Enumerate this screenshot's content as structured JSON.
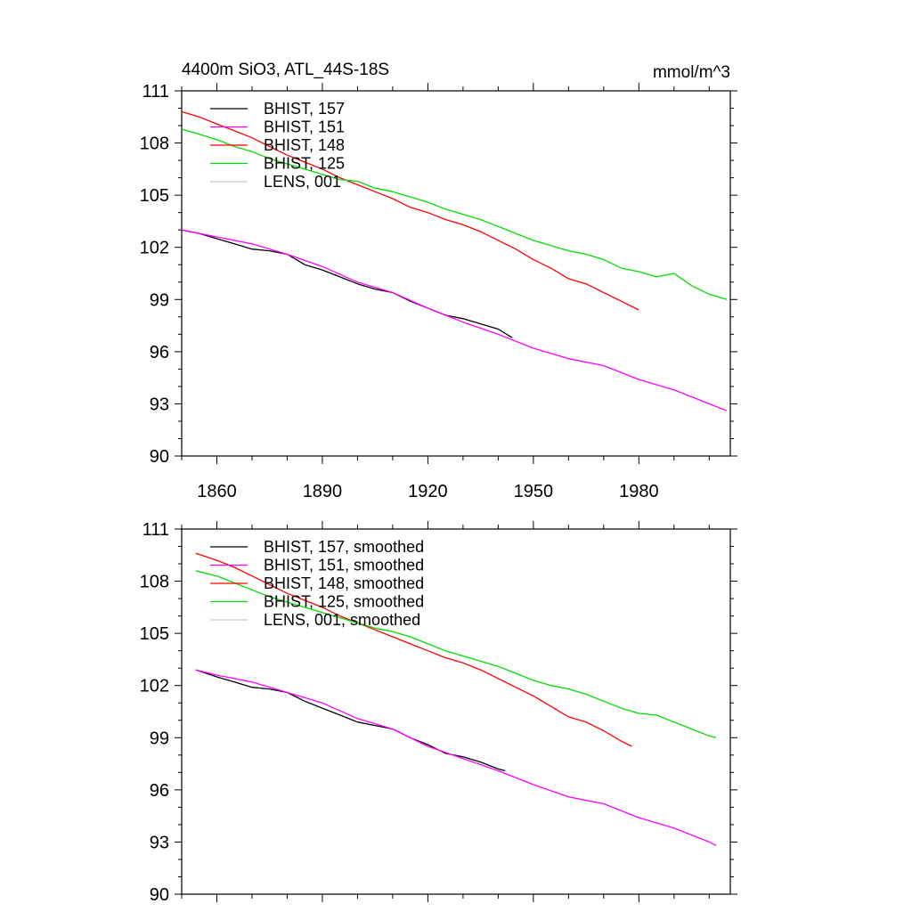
{
  "figure": {
    "title_left": "4400m SiO3, ATL_44S-18S",
    "title_right": "mmol/m^3"
  },
  "colors": {
    "BHIST_157": "#000000",
    "BHIST_151": "#ff00ff",
    "BHIST_148": "#ff0000",
    "BHIST_125": "#00dd00",
    "LENS_001": "#c8c8c8"
  },
  "chart_data": [
    {
      "type": "line",
      "title": "4400m SiO3, ATL_44S-18S",
      "units": "mmol/m^3",
      "xlim": [
        1850,
        2006
      ],
      "ylim": [
        90,
        111
      ],
      "yticks": [
        90,
        93,
        96,
        99,
        102,
        105,
        108,
        111
      ],
      "xticks": [
        1860,
        1890,
        1920,
        1950,
        1980
      ],
      "xtick_labels": [
        "1860",
        "1890",
        "1920",
        "1950",
        "1980"
      ],
      "grid": false,
      "legend_position": "top-left",
      "series": [
        {
          "name": "BHIST, 157",
          "color_key": "BHIST_157",
          "x": [
            1850,
            1855,
            1860,
            1865,
            1870,
            1875,
            1880,
            1885,
            1890,
            1895,
            1900,
            1905,
            1910,
            1915,
            1920,
            1925,
            1930,
            1935,
            1940,
            1944
          ],
          "y": [
            103.0,
            102.8,
            102.5,
            102.2,
            101.9,
            101.8,
            101.6,
            101.0,
            100.7,
            100.3,
            99.9,
            99.6,
            99.4,
            98.9,
            98.5,
            98.1,
            97.9,
            97.6,
            97.3,
            96.8
          ]
        },
        {
          "name": "BHIST, 151",
          "color_key": "BHIST_151",
          "x": [
            1850,
            1860,
            1870,
            1880,
            1890,
            1900,
            1910,
            1920,
            1930,
            1940,
            1950,
            1960,
            1970,
            1980,
            1990,
            2000,
            2005
          ],
          "y": [
            103.0,
            102.6,
            102.2,
            101.6,
            100.9,
            100.0,
            99.4,
            98.5,
            97.7,
            97.0,
            96.2,
            95.6,
            95.2,
            94.4,
            93.8,
            93.0,
            92.6
          ]
        },
        {
          "name": "BHIST, 148",
          "color_key": "BHIST_148",
          "x": [
            1850,
            1855,
            1860,
            1865,
            1870,
            1875,
            1880,
            1885,
            1890,
            1895,
            1900,
            1905,
            1910,
            1915,
            1920,
            1925,
            1930,
            1935,
            1940,
            1945,
            1950,
            1955,
            1960,
            1965,
            1970,
            1975,
            1980
          ],
          "y": [
            109.8,
            109.5,
            109.1,
            108.7,
            108.3,
            107.8,
            107.3,
            106.9,
            106.5,
            106.0,
            105.6,
            105.2,
            104.8,
            104.3,
            104.0,
            103.6,
            103.3,
            102.9,
            102.4,
            101.9,
            101.3,
            100.8,
            100.2,
            99.9,
            99.4,
            98.9,
            98.4
          ]
        },
        {
          "name": "BHIST, 125",
          "color_key": "BHIST_125",
          "x": [
            1850,
            1855,
            1860,
            1865,
            1870,
            1875,
            1880,
            1885,
            1890,
            1895,
            1900,
            1905,
            1910,
            1915,
            1920,
            1925,
            1930,
            1935,
            1940,
            1945,
            1950,
            1955,
            1960,
            1965,
            1970,
            1975,
            1980,
            1985,
            1990,
            1995,
            2000,
            2005
          ],
          "y": [
            108.8,
            108.5,
            108.2,
            107.8,
            107.5,
            107.1,
            106.8,
            106.5,
            106.2,
            105.9,
            105.8,
            105.4,
            105.2,
            104.9,
            104.6,
            104.2,
            103.9,
            103.6,
            103.2,
            102.8,
            102.4,
            102.1,
            101.8,
            101.6,
            101.3,
            100.8,
            100.6,
            100.3,
            100.5,
            99.8,
            99.3,
            99.0
          ]
        },
        {
          "name": "LENS, 001",
          "color_key": "LENS_001",
          "x": [],
          "y": []
        }
      ]
    },
    {
      "type": "line",
      "xlim": [
        1850,
        2006
      ],
      "ylim": [
        90,
        111
      ],
      "yticks": [
        90,
        93,
        96,
        99,
        102,
        105,
        108,
        111
      ],
      "xticks": [
        1860,
        1890,
        1920,
        1950,
        1980
      ],
      "xtick_labels": [],
      "grid": false,
      "legend_position": "top-left",
      "series": [
        {
          "name": "BHIST, 157, smoothed",
          "color_key": "BHIST_157",
          "x": [
            1854,
            1860,
            1865,
            1870,
            1875,
            1880,
            1885,
            1890,
            1895,
            1900,
            1905,
            1910,
            1915,
            1920,
            1925,
            1930,
            1935,
            1940,
            1942
          ],
          "y": [
            102.9,
            102.5,
            102.2,
            101.9,
            101.8,
            101.6,
            101.1,
            100.7,
            100.3,
            99.9,
            99.7,
            99.5,
            99.0,
            98.6,
            98.1,
            97.9,
            97.6,
            97.2,
            97.1
          ]
        },
        {
          "name": "BHIST, 151, smoothed",
          "color_key": "BHIST_151",
          "x": [
            1854,
            1860,
            1870,
            1880,
            1890,
            1900,
            1910,
            1920,
            1930,
            1940,
            1950,
            1960,
            1970,
            1980,
            1990,
            2000,
            2002
          ],
          "y": [
            102.9,
            102.6,
            102.2,
            101.6,
            101.0,
            100.1,
            99.5,
            98.5,
            97.8,
            97.1,
            96.3,
            95.6,
            95.2,
            94.4,
            93.8,
            93.0,
            92.8
          ]
        },
        {
          "name": "BHIST, 148, smoothed",
          "color_key": "BHIST_148",
          "x": [
            1854,
            1860,
            1865,
            1870,
            1875,
            1880,
            1885,
            1890,
            1895,
            1900,
            1905,
            1910,
            1915,
            1920,
            1925,
            1930,
            1935,
            1940,
            1945,
            1950,
            1955,
            1960,
            1965,
            1970,
            1975,
            1978
          ],
          "y": [
            109.6,
            109.2,
            108.8,
            108.3,
            107.8,
            107.3,
            106.9,
            106.5,
            106.0,
            105.6,
            105.2,
            104.8,
            104.4,
            104.0,
            103.6,
            103.3,
            102.9,
            102.4,
            101.9,
            101.4,
            100.8,
            100.2,
            99.9,
            99.4,
            98.8,
            98.5
          ]
        },
        {
          "name": "BHIST, 125, smoothed",
          "color_key": "BHIST_125",
          "x": [
            1854,
            1860,
            1865,
            1870,
            1875,
            1880,
            1885,
            1890,
            1895,
            1900,
            1905,
            1910,
            1915,
            1920,
            1925,
            1930,
            1935,
            1940,
            1945,
            1950,
            1955,
            1960,
            1965,
            1970,
            1975,
            1980,
            1985,
            1990,
            1995,
            2000,
            2002
          ],
          "y": [
            108.6,
            108.3,
            107.9,
            107.5,
            107.1,
            106.8,
            106.5,
            106.2,
            105.9,
            105.6,
            105.3,
            105.1,
            104.8,
            104.4,
            104.0,
            103.7,
            103.4,
            103.1,
            102.7,
            102.3,
            102.0,
            101.8,
            101.5,
            101.1,
            100.7,
            100.4,
            100.3,
            99.9,
            99.5,
            99.1,
            99.0
          ]
        },
        {
          "name": "LENS, 001, smoothed",
          "color_key": "LENS_001",
          "x": [],
          "y": []
        }
      ]
    }
  ]
}
